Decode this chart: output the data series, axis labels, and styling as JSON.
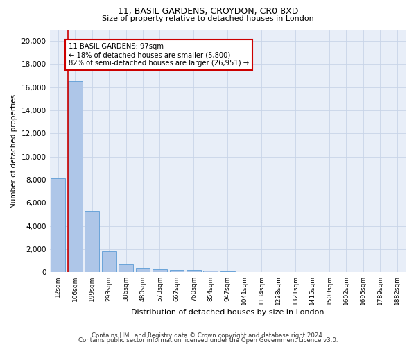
{
  "title": "11, BASIL GARDENS, CROYDON, CR0 8XD",
  "subtitle": "Size of property relative to detached houses in London",
  "xlabel": "Distribution of detached houses by size in London",
  "ylabel": "Number of detached properties",
  "categories": [
    "12sqm",
    "106sqm",
    "199sqm",
    "293sqm",
    "386sqm",
    "480sqm",
    "573sqm",
    "667sqm",
    "760sqm",
    "854sqm",
    "947sqm",
    "1041sqm",
    "1134sqm",
    "1228sqm",
    "1321sqm",
    "1415sqm",
    "1508sqm",
    "1602sqm",
    "1695sqm",
    "1789sqm",
    "1882sqm"
  ],
  "values": [
    8100,
    16500,
    5300,
    1850,
    700,
    370,
    270,
    210,
    200,
    120,
    80,
    0,
    0,
    0,
    0,
    0,
    0,
    0,
    0,
    0,
    0
  ],
  "bar_color": "#aec6e8",
  "bar_edge_color": "#5b9bd5",
  "marker_color": "#cc0000",
  "annotation_text": "11 BASIL GARDENS: 97sqm\n← 18% of detached houses are smaller (5,800)\n82% of semi-detached houses are larger (26,951) →",
  "annotation_box_color": "#ffffff",
  "annotation_box_edge": "#cc0000",
  "grid_color": "#c8d4e8",
  "background_color": "#e8eef8",
  "ylim": [
    0,
    21000
  ],
  "yticks": [
    0,
    2000,
    4000,
    6000,
    8000,
    10000,
    12000,
    14000,
    16000,
    18000,
    20000
  ],
  "footer_line1": "Contains HM Land Registry data © Crown copyright and database right 2024.",
  "footer_line2": "Contains public sector information licensed under the Open Government Licence v3.0."
}
